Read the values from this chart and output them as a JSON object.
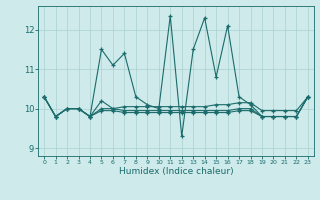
{
  "title": "",
  "xlabel": "Humidex (Indice chaleur)",
  "ylabel": "",
  "bg_color": "#ceeaea",
  "line_color": "#1a6b6b",
  "grid_color": "#aacfcf",
  "xlim": [
    -0.5,
    23.5
  ],
  "ylim": [
    8.8,
    12.6
  ],
  "yticks": [
    9,
    10,
    11,
    12
  ],
  "xticks": [
    0,
    1,
    2,
    3,
    4,
    5,
    6,
    7,
    8,
    9,
    10,
    11,
    12,
    13,
    14,
    15,
    16,
    17,
    18,
    19,
    20,
    21,
    22,
    23
  ],
  "series": [
    [
      10.3,
      9.8,
      10.0,
      10.0,
      9.8,
      11.5,
      11.1,
      11.4,
      10.3,
      10.1,
      10.0,
      12.35,
      9.3,
      11.5,
      12.3,
      10.8,
      12.1,
      10.3,
      10.1,
      9.8,
      9.8,
      9.8,
      9.8,
      10.3
    ],
    [
      10.3,
      9.8,
      10.0,
      10.0,
      9.8,
      10.2,
      10.0,
      10.05,
      10.05,
      10.05,
      10.05,
      10.05,
      10.05,
      10.05,
      10.05,
      10.1,
      10.1,
      10.15,
      10.15,
      9.95,
      9.95,
      9.95,
      9.95,
      10.3
    ],
    [
      10.3,
      9.8,
      10.0,
      10.0,
      9.8,
      10.0,
      10.0,
      9.95,
      9.95,
      9.95,
      9.95,
      9.95,
      9.95,
      9.95,
      9.95,
      9.95,
      9.95,
      10.0,
      10.0,
      9.8,
      9.8,
      9.8,
      9.8,
      10.3
    ],
    [
      10.3,
      9.8,
      10.0,
      10.0,
      9.8,
      9.95,
      9.95,
      9.9,
      9.9,
      9.9,
      9.9,
      9.9,
      9.9,
      9.9,
      9.9,
      9.9,
      9.9,
      9.95,
      9.95,
      9.8,
      9.8,
      9.8,
      9.8,
      10.3
    ]
  ]
}
